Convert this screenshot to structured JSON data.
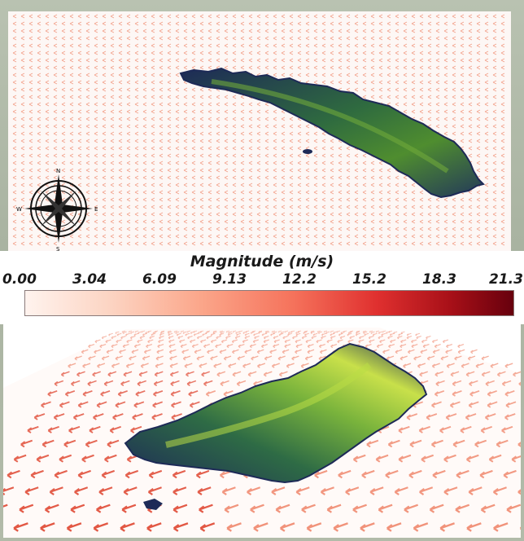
{
  "legend": {
    "title": "Magnitude (m/s)",
    "ticks": [
      "0.00",
      "3.04",
      "6.09",
      "9.13",
      "12.2",
      "15.2",
      "18.3",
      "21.3"
    ]
  },
  "compass": {
    "north": "N",
    "south": "S",
    "east": "E",
    "west": "W"
  },
  "colors": {
    "colormap_low": "#fff3ee",
    "colormap_mid": "#f5725b",
    "colormap_high": "#67000d",
    "terrain_low": "#1d2a57",
    "terrain_high": "#c8e04a"
  },
  "views": [
    "top-down wind vector field with island terrain",
    "perspective 3D wind vector field with island terrain"
  ]
}
